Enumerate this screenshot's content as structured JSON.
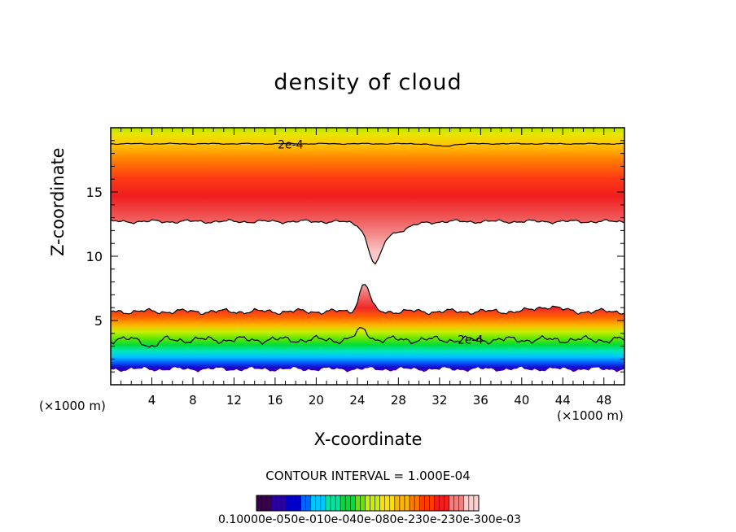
{
  "chart_data": {
    "type": "heatmap",
    "title": "density of cloud",
    "xlabel": "X-coordinate",
    "ylabel": "Z-coordinate",
    "x_unit_left": "(×1000 m)",
    "x_unit_right": "(×1000 m)",
    "xlim": [
      0,
      50
    ],
    "ylim": [
      0,
      20
    ],
    "x_ticks": [
      "4",
      "8",
      "12",
      "16",
      "20",
      "24",
      "28",
      "32",
      "36",
      "40",
      "44",
      "48"
    ],
    "y_ticks": [
      "5",
      "10",
      "15"
    ],
    "contour_labels": [
      {
        "text": "2e-4",
        "x": 17.5,
        "z": 18.7
      },
      {
        "text": "2e-4",
        "x": 35.0,
        "z": 3.5
      }
    ],
    "contour_interval": "CONTOUR INTERVAL = 1.000E-04",
    "colorbar_labels": "0.10000e-050e-010e-040e-080e-230e-230e-300e-03",
    "colormap": [
      "#3a004f",
      "#2a00a0",
      "#0000c8",
      "#0064ff",
      "#00c8ff",
      "#00e6a0",
      "#00dc3c",
      "#64e600",
      "#c8f000",
      "#ffe100",
      "#ffb400",
      "#ff7800",
      "#ff3c00",
      "#f01e1e",
      "#f08080",
      "#fad0d0"
    ]
  }
}
